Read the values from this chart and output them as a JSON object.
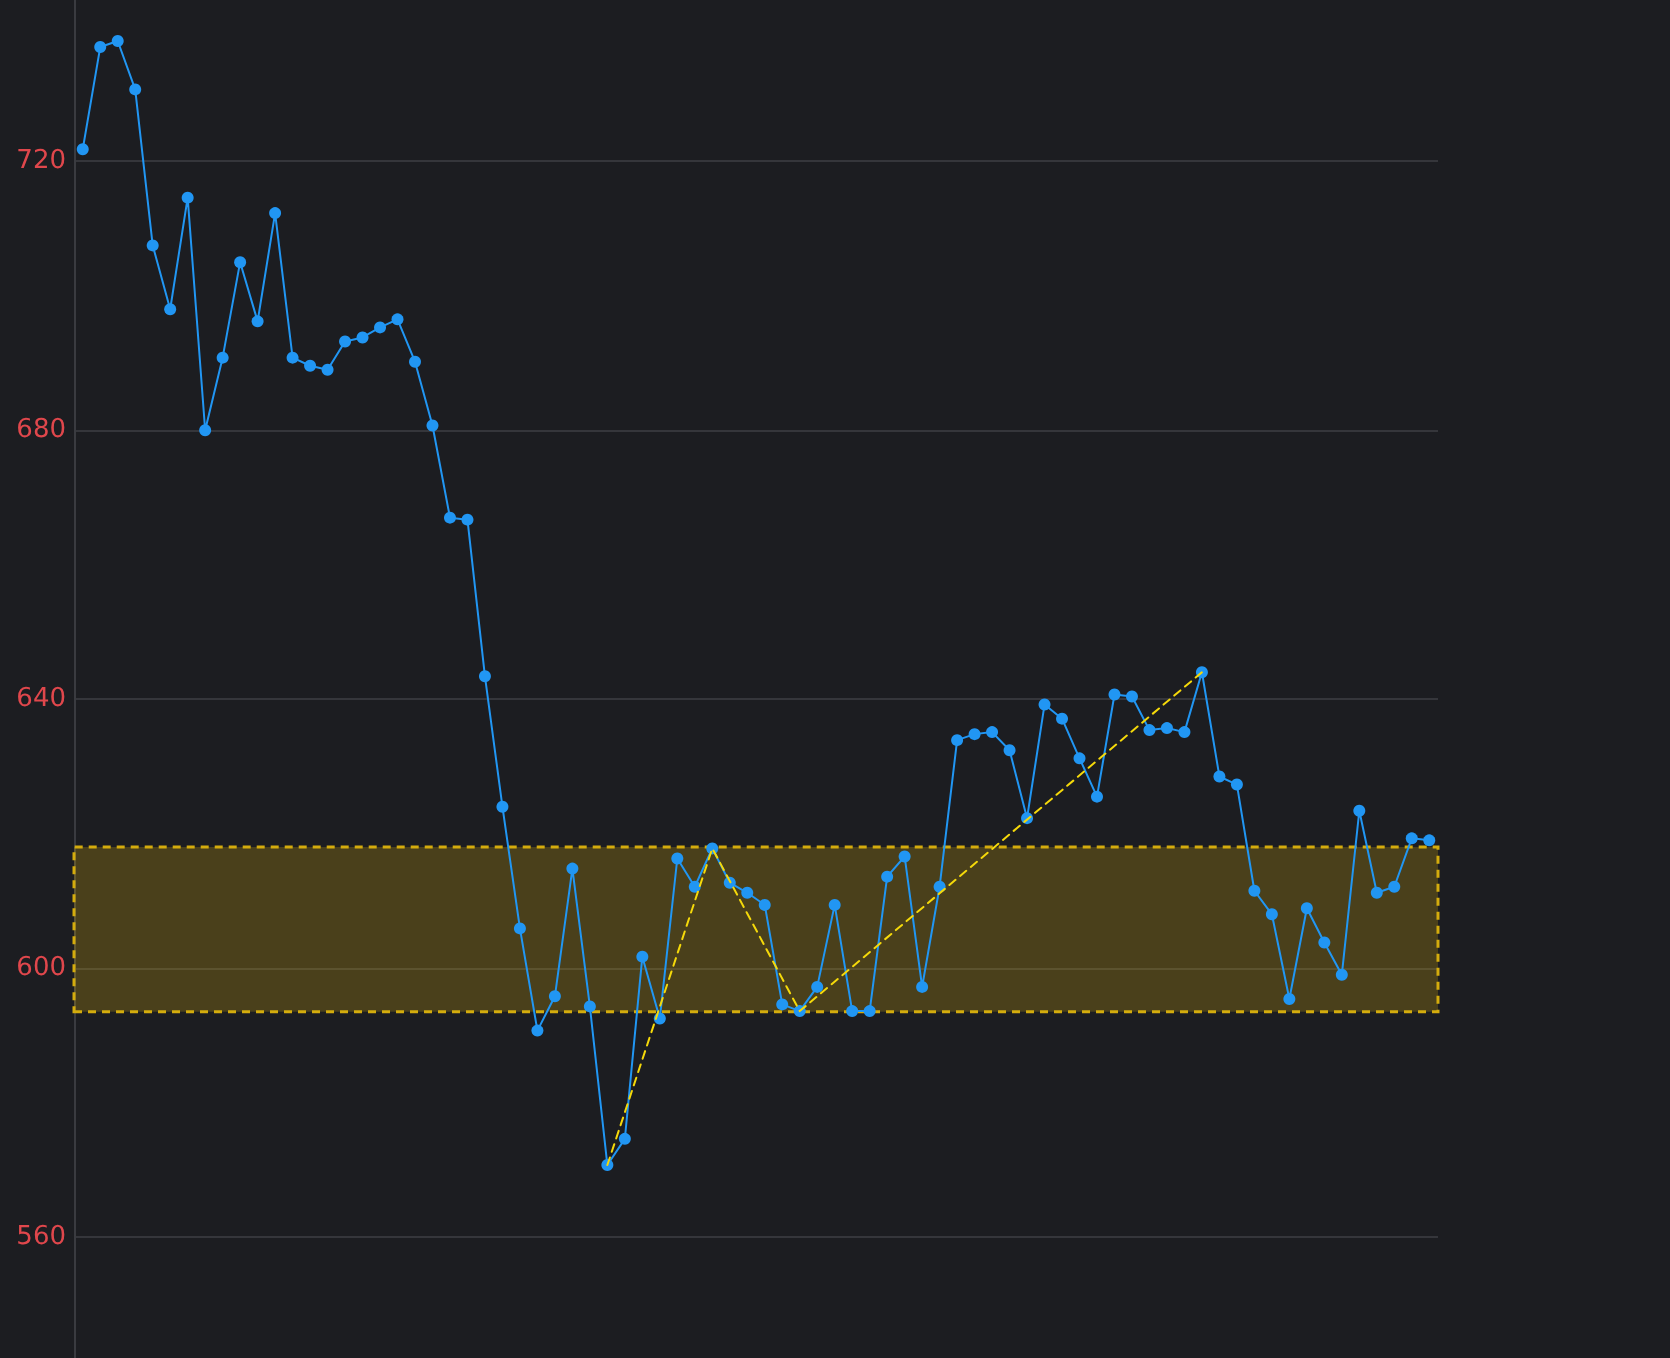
{
  "chart_data": {
    "type": "line",
    "categories": [
      null,
      null,
      null,
      null,
      null,
      null,
      null,
      null,
      null,
      null,
      null,
      null,
      null,
      null,
      null,
      null,
      null,
      null,
      null,
      null,
      null,
      null,
      null,
      null,
      null,
      null,
      null,
      null,
      null,
      null,
      null,
      null,
      null,
      null,
      null,
      null,
      null,
      null,
      null,
      null,
      null,
      null,
      null,
      null,
      null,
      null,
      null,
      null,
      null,
      null,
      null,
      null,
      null,
      null,
      null,
      null,
      null,
      null,
      null,
      null,
      null,
      null,
      null,
      null,
      null,
      null,
      null,
      null,
      null,
      null,
      null,
      null,
      null,
      null,
      null,
      null,
      null,
      null
    ],
    "series": [
      {
        "color": "#2196f3",
        "marker": "circle",
        "line_style": "solid",
        "values": [
          721.8,
          737,
          737.9,
          730.7,
          707.5,
          698,
          714.6,
          680,
          690.8,
          705,
          696.2,
          712.3,
          690.8,
          689.6,
          689,
          693.2,
          693.8,
          695.3,
          696.5,
          690.2,
          680.7,
          667,
          666.7,
          643.4,
          624,
          605.9,
          590.7,
          595.8,
          614.8,
          594.3,
          570.7,
          574.6,
          601.7,
          592.5,
          616.3,
          612.1,
          617.8,
          612.7,
          611.2,
          609.4,
          594.6,
          593.6,
          597.2,
          609.4,
          593.6,
          593.6,
          613.6,
          616.6,
          597.2,
          612.1,
          633.9,
          634.8,
          635.1,
          632.4,
          622.3,
          639.2,
          637.1,
          631.2,
          625.5,
          640.7,
          640.4,
          635.4,
          635.7,
          635.1,
          644,
          628.5,
          627.3,
          611.5,
          608,
          595.4,
          608.9,
          603.8,
          599,
          623.4,
          611.2,
          612.1,
          619.3,
          619
        ]
      },
      {
        "color": "#f5d90a",
        "line_style": "dashed",
        "values": [
          null,
          null,
          null,
          null,
          null,
          null,
          null,
          null,
          null,
          null,
          null,
          null,
          null,
          null,
          null,
          null,
          null,
          null,
          null,
          null,
          null,
          null,
          null,
          null,
          null,
          null,
          null,
          null,
          null,
          null,
          570.7,
          null,
          null,
          null,
          null,
          null,
          617.8,
          null,
          null,
          null,
          null,
          593.6,
          null,
          null,
          null,
          null,
          null,
          null,
          null,
          null,
          null,
          null,
          null,
          null,
          null,
          null,
          null,
          null,
          null,
          null,
          null,
          null,
          null,
          null,
          644,
          null,
          null,
          null,
          null,
          null,
          null,
          null,
          null,
          null,
          null,
          null,
          null,
          null
        ]
      }
    ],
    "ylim": [
      542,
      744
    ],
    "yticks": [
      560,
      600,
      640,
      680,
      720
    ],
    "grid": "y",
    "tick_labels": "y",
    "bands": [
      {
        "axis": "y",
        "from": 593.5,
        "to": 618,
        "color": "#d4ac0d"
      }
    ]
  }
}
